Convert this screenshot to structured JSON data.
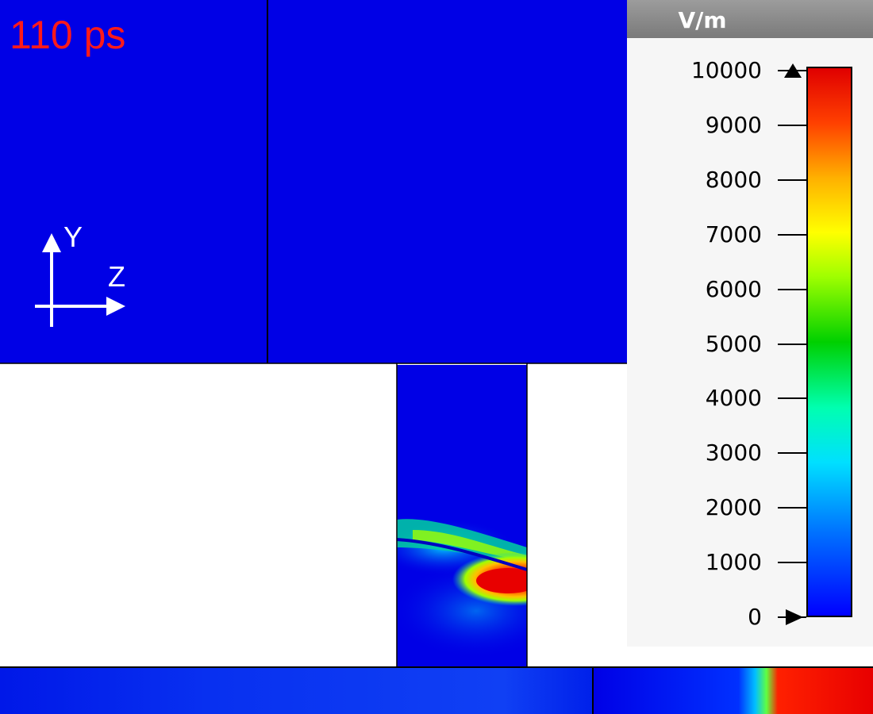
{
  "overlay": {
    "time": "110 ps",
    "axis_y": "Y",
    "axis_z": "Z"
  },
  "legend": {
    "unit": "V/m",
    "ticks": [
      "10000",
      "9000",
      "8000",
      "7000",
      "6000",
      "5000",
      "4000",
      "3000",
      "2000",
      "1000",
      "0"
    ],
    "min": 0,
    "max": 10000,
    "colors": [
      "#0000ff",
      "#0070ff",
      "#00e0ff",
      "#00ffb0",
      "#00d000",
      "#a0ff00",
      "#ffff00",
      "#ffb000",
      "#ff4000",
      "#e00000"
    ]
  },
  "colors": {
    "background_field": "#0000e6",
    "time_label": "#ff1a1a",
    "axis": "#ffffff"
  }
}
